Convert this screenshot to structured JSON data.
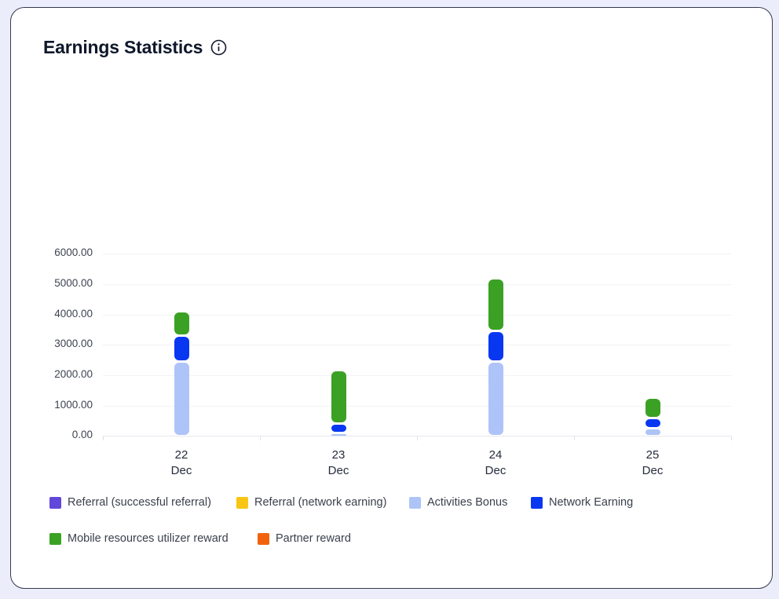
{
  "header": {
    "title": "Earnings Statistics"
  },
  "icons": {
    "title_info": "info-circle-icon"
  },
  "chart_data": {
    "type": "bar",
    "stacked": true,
    "title": "Earnings Statistics",
    "categories": [
      "22 Dec",
      "23 Dec",
      "24 Dec",
      "25 Dec"
    ],
    "x_tick_labels": [
      [
        "22",
        "Dec"
      ],
      [
        "23",
        "Dec"
      ],
      [
        "24",
        "Dec"
      ],
      [
        "25",
        "Dec"
      ]
    ],
    "y_tick_labels": [
      "0.00",
      "1000.00",
      "2000.00",
      "3000.00",
      "4000.00",
      "5000.00",
      "6000.00"
    ],
    "ylim": [
      0,
      6000
    ],
    "ytick_step": 1000,
    "grid": true,
    "legend_position": "bottom",
    "series": [
      {
        "name": "Referral (successful referral)",
        "color": "#6147DA",
        "values": [
          0,
          0,
          0,
          0
        ]
      },
      {
        "name": "Referral (network earning)",
        "color": "#F9C513",
        "values": [
          0,
          0,
          0,
          0
        ]
      },
      {
        "name": "Activities Bonus",
        "color": "#AEC4F8",
        "values": [
          2450,
          100,
          2450,
          250
        ]
      },
      {
        "name": "Network Earning",
        "color": "#0837F2",
        "values": [
          850,
          300,
          1000,
          330
        ]
      },
      {
        "name": "Mobile resources utilizer reward",
        "color": "#3BA125",
        "values": [
          800,
          1750,
          1730,
          670
        ]
      },
      {
        "name": "Partner reward",
        "color": "#F2620D",
        "values": [
          0,
          0,
          0,
          0
        ]
      }
    ],
    "totals": [
      4100,
      2150,
      5180,
      1250
    ]
  }
}
